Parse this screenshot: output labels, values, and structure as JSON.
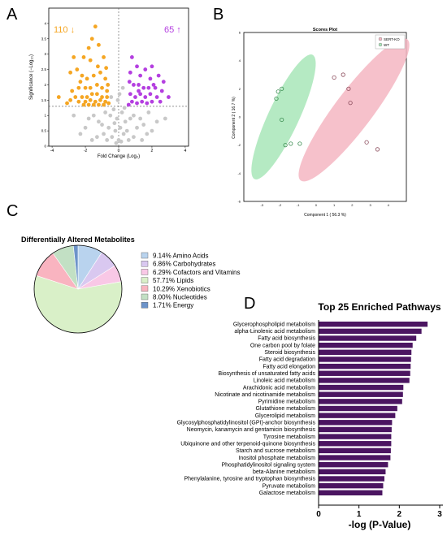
{
  "panels": {
    "A": "A",
    "B": "B",
    "C": "C",
    "D": "D"
  },
  "colors": {
    "down": "#F5A623",
    "up": "#B43FE0",
    "nonsig": "#C8C8C8",
    "sert_ko": "#F4B6C2",
    "wt": "#A8E6B8",
    "bar": "#4B1561"
  },
  "chart_data": [
    {
      "id": "volcano",
      "type": "scatter",
      "xlabel": "Fold Change (Log₂)",
      "ylabel": "Significance (−Log₁₀)",
      "xlim": [
        -4.2,
        4.2
      ],
      "ylim": [
        0,
        4.5
      ],
      "xticks": [
        -4,
        -2,
        0,
        2,
        4
      ],
      "yticks": [
        0,
        0.5,
        1,
        1.5,
        2,
        2.5,
        3,
        3.5,
        4
      ],
      "thresholds": {
        "x": [
          -0.5,
          0.5
        ],
        "y": 1.3
      },
      "annotations": {
        "down_count": "110 ↓",
        "up_count": "65 ↑"
      },
      "series": [
        {
          "key": "down",
          "points": [
            [
              -1.4,
              3.9
            ],
            [
              -1.6,
              3.5
            ],
            [
              -1.8,
              3.2
            ],
            [
              -1.2,
              3.3
            ],
            [
              -2.1,
              2.9
            ],
            [
              -1.7,
              2.8
            ],
            [
              -0.9,
              2.9
            ],
            [
              -2.7,
              2.9
            ],
            [
              -2.9,
              2.4
            ],
            [
              -2.5,
              2.5
            ],
            [
              -2.2,
              2.3
            ],
            [
              -1.9,
              2.2
            ],
            [
              -1.5,
              2.3
            ],
            [
              -1.1,
              2.4
            ],
            [
              -0.8,
              2.2
            ],
            [
              -3.6,
              1.6
            ],
            [
              -2.8,
              1.8
            ],
            [
              -2.4,
              1.9
            ],
            [
              -2.0,
              1.9
            ],
            [
              -1.7,
              1.9
            ],
            [
              -1.3,
              2.0
            ],
            [
              -1.0,
              1.9
            ],
            [
              -0.7,
              1.8
            ],
            [
              -2.6,
              1.6
            ],
            [
              -2.2,
              1.6
            ],
            [
              -1.9,
              1.6
            ],
            [
              -1.6,
              1.7
            ],
            [
              -1.3,
              1.7
            ],
            [
              -1.0,
              1.6
            ],
            [
              -0.7,
              1.6
            ],
            [
              -2.4,
              1.45
            ],
            [
              -2.0,
              1.45
            ],
            [
              -1.7,
              1.5
            ],
            [
              -1.4,
              1.45
            ],
            [
              -1.1,
              1.5
            ],
            [
              -0.8,
              1.45
            ],
            [
              -0.6,
              1.4
            ],
            [
              -2.9,
              1.5
            ],
            [
              -1.5,
              1.35
            ],
            [
              -1.2,
              1.35
            ],
            [
              -0.9,
              1.35
            ],
            [
              -1.8,
              1.35
            ],
            [
              -2.1,
              1.35
            ],
            [
              -3.1,
              1.4
            ],
            [
              -0.65,
              2.0
            ],
            [
              -1.25,
              2.6
            ],
            [
              -0.75,
              2.55
            ],
            [
              -2.3,
              2.1
            ]
          ]
        },
        {
          "key": "up",
          "points": [
            [
              0.8,
              2.9
            ],
            [
              1.1,
              2.6
            ],
            [
              0.7,
              2.4
            ],
            [
              1.3,
              2.3
            ],
            [
              1.6,
              2.5
            ],
            [
              2.0,
              2.6
            ],
            [
              1.9,
              2.2
            ],
            [
              2.4,
              2.3
            ],
            [
              2.7,
              2.1
            ],
            [
              0.9,
              2.0
            ],
            [
              1.2,
              2.0
            ],
            [
              1.5,
              1.9
            ],
            [
              1.8,
              1.9
            ],
            [
              2.2,
              1.9
            ],
            [
              2.6,
              1.8
            ],
            [
              0.7,
              1.7
            ],
            [
              1.0,
              1.6
            ],
            [
              1.3,
              1.7
            ],
            [
              1.6,
              1.6
            ],
            [
              1.9,
              1.7
            ],
            [
              2.3,
              1.6
            ],
            [
              3.0,
              1.6
            ],
            [
              0.8,
              1.45
            ],
            [
              1.1,
              1.4
            ],
            [
              1.4,
              1.45
            ],
            [
              1.7,
              1.4
            ],
            [
              2.0,
              1.45
            ],
            [
              2.5,
              1.45
            ],
            [
              0.6,
              1.35
            ],
            [
              1.2,
              1.8
            ],
            [
              0.65,
              2.1
            ],
            [
              2.1,
              2.0
            ]
          ]
        },
        {
          "key": "nonsig",
          "points": [
            [
              -0.3,
              1.2
            ],
            [
              0.2,
              1.1
            ],
            [
              -0.1,
              0.9
            ],
            [
              0.4,
              0.8
            ],
            [
              -0.5,
              1.0
            ],
            [
              0.1,
              0.6
            ],
            [
              -0.2,
              0.5
            ],
            [
              0.3,
              0.4
            ],
            [
              -0.4,
              0.3
            ],
            [
              0.0,
              0.2
            ],
            [
              0.5,
              0.5
            ],
            [
              -0.6,
              0.6
            ],
            [
              0.7,
              0.9
            ],
            [
              -0.8,
              1.1
            ],
            [
              0.9,
              1.0
            ],
            [
              -1.0,
              0.7
            ],
            [
              1.1,
              0.6
            ],
            [
              -1.2,
              0.8
            ],
            [
              1.3,
              0.9
            ],
            [
              -1.5,
              1.0
            ],
            [
              1.5,
              0.7
            ],
            [
              -1.8,
              0.9
            ],
            [
              1.8,
              1.1
            ],
            [
              -2.0,
              0.6
            ],
            [
              2.0,
              0.5
            ],
            [
              -2.3,
              0.4
            ],
            [
              2.3,
              0.8
            ],
            [
              -0.15,
              0.1
            ],
            [
              0.15,
              0.15
            ],
            [
              -0.7,
              0.2
            ],
            [
              0.6,
              0.2
            ],
            [
              -0.25,
              0.75
            ],
            [
              0.35,
              1.25
            ],
            [
              -0.05,
              1.5
            ],
            [
              0.05,
              1.7
            ],
            [
              -0.45,
              1.6
            ],
            [
              0.25,
              1.9
            ],
            [
              -0.9,
              0.4
            ],
            [
              0.9,
              0.3
            ],
            [
              -1.3,
              0.3
            ],
            [
              1.4,
              0.2
            ],
            [
              -2.7,
              1.0
            ],
            [
              2.8,
              0.9
            ],
            [
              -1.6,
              0.2
            ],
            [
              1.7,
              0.4
            ]
          ]
        }
      ]
    },
    {
      "id": "scores",
      "type": "scatter",
      "title": "Scores Plot",
      "xlabel": "Component 1 ( 56.3 %)",
      "ylabel": "Component 2 ( 16.7 %)",
      "xlim": [
        -4,
        5
      ],
      "ylim": [
        -6,
        6
      ],
      "xticks": [
        -3,
        -2,
        -1,
        0,
        1,
        2,
        3,
        4
      ],
      "yticks": [
        -6,
        -4,
        -2,
        0,
        2,
        4,
        6
      ],
      "legend": "top-right",
      "series": [
        {
          "name": "SERT-KO",
          "key": "sert_ko",
          "points": [
            [
              1.0,
              2.8
            ],
            [
              1.5,
              3.0
            ],
            [
              1.8,
              2.0
            ],
            [
              1.9,
              1.0
            ],
            [
              2.8,
              -1.8
            ],
            [
              3.4,
              -2.3
            ]
          ],
          "ellipse": {
            "cx": 2.1,
            "cy": 0.5,
            "rx": 4.9,
            "ry": 1.05,
            "angle": -53
          }
        },
        {
          "name": "WT",
          "key": "wt",
          "points": [
            [
              -2.1,
              1.8
            ],
            [
              -1.9,
              2.0
            ],
            [
              -2.2,
              1.3
            ],
            [
              -1.9,
              -0.2
            ],
            [
              -1.7,
              -2.0
            ],
            [
              -1.4,
              -1.9
            ],
            [
              -0.9,
              -1.9
            ]
          ],
          "ellipse": {
            "cx": -1.8,
            "cy": 0.0,
            "rx": 3.8,
            "ry": 0.85,
            "angle": -65
          }
        }
      ]
    },
    {
      "id": "pie",
      "type": "pie",
      "title": "Differentially Altered Metabolites",
      "slices": [
        {
          "label": "Amino Acids",
          "pct": "9.14%",
          "value": 9.14,
          "color": "#B9D3EE"
        },
        {
          "label": "Carbohydrates",
          "pct": "6.86%",
          "value": 6.86,
          "color": "#D9C8F0"
        },
        {
          "label": "Cofactors and Vitamins",
          "pct": "6.29%",
          "value": 6.29,
          "color": "#F9C8E6"
        },
        {
          "label": "Lipids",
          "pct": "57.71%",
          "value": 57.71,
          "color": "#D9F0C8"
        },
        {
          "label": "Xenobiotics",
          "pct": "10.29%",
          "value": 10.29,
          "color": "#F9B4C0"
        },
        {
          "label": "Nucleotides",
          "pct": "8.00%",
          "value": 8.0,
          "color": "#C2E0C4"
        },
        {
          "label": "Energy",
          "pct": "1.71%",
          "value": 1.71,
          "color": "#6C93C9"
        }
      ]
    },
    {
      "id": "pathways",
      "type": "bar",
      "title": "Top 25 Enriched Pathways",
      "xlabel": "-log (P-Value)",
      "xlim": [
        0,
        3
      ],
      "xticks": [
        0,
        1,
        2,
        3
      ],
      "categories": [
        "Glycerophospholipid metabolism",
        "alpha-Linolenic acid metabolism",
        "Fatty acid biosynthesis",
        "One carbon pool by folate",
        "Steroid biosynthesis",
        "Fatty acid degradation",
        "Fatty acid elongation",
        "Biosynthesis of unsaturated fatty acids",
        "Linoleic acid metabolism",
        "Arachidonic acid metabolism",
        "Nicotinate and nicotinamide metabolism",
        "Pyrimidine metabolism",
        "Glutathione metabolism",
        "Glycerolipid metabolism",
        "Glycosylphosphatidylinositol (GPI)-anchor biosynthesis",
        "Neomycin, kanamycin and gentamicin biosynthesis",
        "Tyrosine metabolism",
        "Ubiquinone and other terpenoid-quinone biosynthesis",
        "Starch and sucrose metabolism",
        "Inositol phosphate metabolism",
        "Phosphatidylinositol signaling system",
        "beta-Alanine metabolism",
        "Phenylalanine, tyrosine and tryptophan biosynthesis",
        "Pyruvate metabolism",
        "Galactose metabolism"
      ],
      "values": [
        2.7,
        2.55,
        2.42,
        2.33,
        2.3,
        2.29,
        2.28,
        2.27,
        2.25,
        2.1,
        2.09,
        2.07,
        1.95,
        1.9,
        1.82,
        1.81,
        1.8,
        1.8,
        1.79,
        1.78,
        1.72,
        1.66,
        1.63,
        1.6,
        1.58
      ]
    }
  ]
}
